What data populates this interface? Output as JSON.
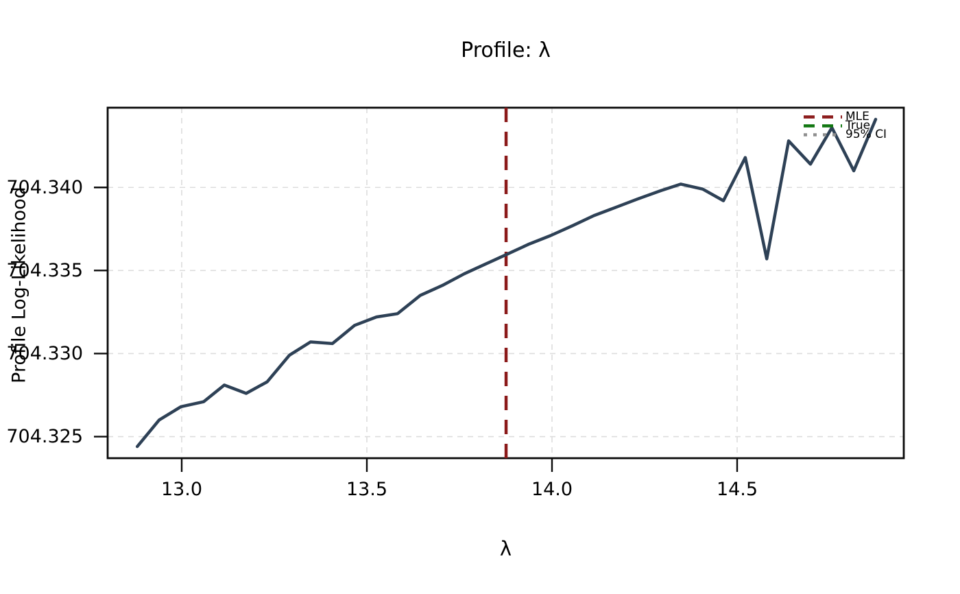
{
  "chart_data": {
    "type": "line",
    "title": "Profile: λ",
    "xlabel": "λ",
    "ylabel": "Profile Log-Likelihood",
    "xlim": [
      12.8,
      14.95
    ],
    "ylim": [
      704.3237,
      704.3448
    ],
    "grid": true,
    "x_ticks": [
      13.0,
      13.5,
      14.0,
      14.5
    ],
    "x_tick_labels": [
      "13.0",
      "13.5",
      "14.0",
      "14.5"
    ],
    "y_ticks": [
      704.34,
      704.335,
      704.33,
      704.325
    ],
    "y_tick_labels": [
      "704.340",
      "704.335",
      "704.330",
      "704.325"
    ],
    "series": [
      {
        "name": "profile-log-likelihood",
        "color": "#2e4156",
        "style": "solid",
        "x": [
          12.88,
          12.939,
          12.998,
          13.059,
          13.115,
          13.174,
          13.231,
          13.291,
          13.348,
          13.407,
          13.467,
          13.526,
          13.583,
          13.644,
          13.704,
          13.763,
          13.822,
          13.881,
          13.939,
          13.996,
          14.056,
          14.113,
          14.172,
          14.231,
          14.293,
          14.348,
          14.407,
          14.463,
          14.522,
          14.58,
          14.639,
          14.698,
          14.756,
          14.815,
          14.874
        ],
        "y": [
          704.3244,
          704.326,
          704.3268,
          704.3271,
          704.3281,
          704.3276,
          704.3283,
          704.3299,
          704.3307,
          704.3306,
          704.3317,
          704.3322,
          704.3324,
          704.3335,
          704.3341,
          704.3348,
          704.3354,
          704.336,
          704.3366,
          704.3371,
          704.3377,
          704.3383,
          704.3388,
          704.3393,
          704.3398,
          704.3402,
          704.3399,
          704.3392,
          704.3418,
          704.3357,
          704.3428,
          704.3414,
          704.3436,
          704.341,
          704.3441
        ]
      }
    ],
    "vlines": [
      {
        "name": "MLE",
        "x": 13.876,
        "color": "#8b1a1a",
        "style": "dashed"
      }
    ],
    "legend": {
      "position": "upper right",
      "entries": [
        {
          "label": "MLE",
          "color": "#8b1a1a",
          "dash": "dashed"
        },
        {
          "label": "True",
          "color": "#117711",
          "dash": "dashed"
        },
        {
          "label": "95% CI",
          "color": "#8f8f8f",
          "dash": "dotted"
        }
      ]
    }
  }
}
